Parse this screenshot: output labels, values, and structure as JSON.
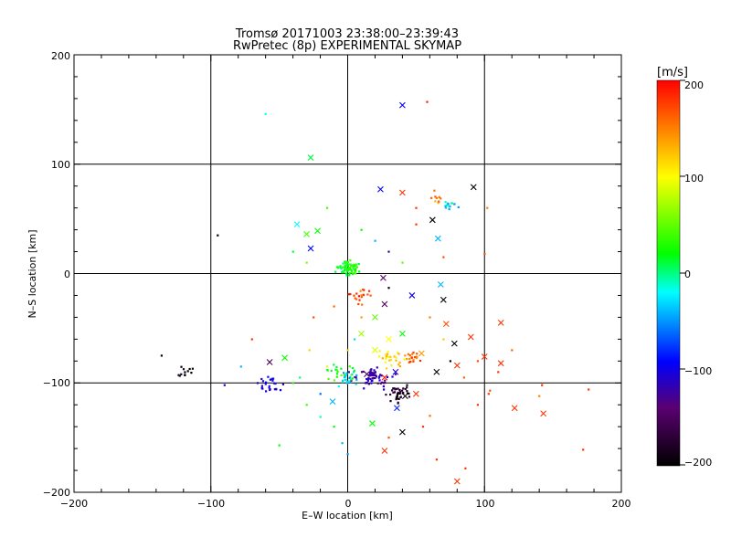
{
  "chart_data": {
    "type": "scatter",
    "title": "Tromsø 20171003 23:38:00–23:39:43",
    "subtitle": "RwPretec (8p) EXPERIMENTAL SKYMAP",
    "xlabel": "E–W location [km]",
    "ylabel": "N–S location [km]",
    "xlim": [
      -200,
      200
    ],
    "ylim": [
      -200,
      200
    ],
    "xticks": [
      "−200",
      "−100",
      "0",
      "100",
      "200"
    ],
    "yticks": [
      "200",
      "100",
      "0",
      "−100",
      "−200"
    ],
    "grid": true,
    "colorbar": {
      "unit": "[m/s]",
      "min": -200,
      "max": 200,
      "ticks": [
        "200",
        "100",
        "0",
        "−100",
        "−200"
      ],
      "colors": [
        "#000000",
        "#5a0070",
        "#0000ff",
        "#00ffff",
        "#00ff00",
        "#ffff00",
        "#ff0000"
      ]
    },
    "markers": {
      "cross": [
        [
          40,
          154,
          -90
        ],
        [
          24,
          77,
          -90
        ],
        [
          -27,
          106,
          10
        ],
        [
          -37,
          45,
          -20
        ],
        [
          -30,
          36,
          40
        ],
        [
          -22,
          39,
          20
        ],
        [
          -27,
          23,
          -90
        ],
        [
          92,
          79,
          -200
        ],
        [
          62,
          49,
          -200
        ],
        [
          66,
          32,
          -40
        ],
        [
          40,
          74,
          180
        ],
        [
          26,
          -4,
          -140
        ],
        [
          47,
          -20,
          -100
        ],
        [
          70,
          -24,
          -200
        ],
        [
          27,
          -28,
          -150
        ],
        [
          68,
          -10,
          -40
        ],
        [
          40,
          -55,
          20
        ],
        [
          72,
          -46,
          170
        ],
        [
          90,
          -58,
          180
        ],
        [
          78,
          -64,
          -200
        ],
        [
          112,
          -45,
          180
        ],
        [
          112,
          -82,
          180
        ],
        [
          100,
          -76,
          180
        ],
        [
          80,
          -84,
          180
        ],
        [
          54,
          -73,
          140
        ],
        [
          65,
          -90,
          -200
        ],
        [
          40,
          -145,
          -200
        ],
        [
          27,
          -162,
          180
        ],
        [
          80,
          -190,
          180
        ],
        [
          122,
          -123,
          180
        ],
        [
          143,
          -128,
          180
        ],
        [
          -57,
          -81,
          -150
        ],
        [
          -46,
          -77,
          20
        ],
        [
          -11,
          -117,
          -40
        ],
        [
          18,
          -137,
          20
        ],
        [
          36,
          -123,
          -80
        ],
        [
          42,
          -112,
          -200
        ],
        [
          50,
          -110,
          180
        ],
        [
          27,
          -95,
          190
        ],
        [
          14,
          -92,
          -150
        ],
        [
          35,
          -90,
          -110
        ],
        [
          20,
          -70,
          90
        ],
        [
          10,
          -55,
          70
        ],
        [
          20,
          -40,
          50
        ],
        [
          30,
          -60,
          100
        ]
      ],
      "clusters": [
        [
          0,
          5,
          8,
          80,
          20
        ],
        [
          20,
          -95,
          12,
          60,
          -120
        ],
        [
          38,
          -110,
          10,
          40,
          -180
        ],
        [
          -118,
          -90,
          6,
          12,
          -200
        ],
        [
          -55,
          -103,
          10,
          25,
          -100
        ],
        [
          48,
          -78,
          6,
          20,
          160
        ],
        [
          32,
          -78,
          10,
          25,
          110
        ],
        [
          -2,
          -97,
          8,
          25,
          -30
        ],
        [
          74,
          62,
          6,
          15,
          -30
        ],
        [
          62,
          68,
          8,
          10,
          150
        ],
        [
          10,
          -20,
          10,
          20,
          170
        ],
        [
          -5,
          -90,
          12,
          20,
          30
        ]
      ],
      "scatter": [
        [
          -60,
          146,
          -20
        ],
        [
          -95,
          35,
          -200
        ],
        [
          -136,
          -75,
          -200
        ],
        [
          58,
          157,
          190
        ],
        [
          100,
          18,
          170
        ],
        [
          102,
          60,
          150
        ],
        [
          -20,
          -131,
          -10
        ],
        [
          -50,
          -157,
          20
        ],
        [
          30,
          -13,
          -200
        ],
        [
          50,
          45,
          180
        ],
        [
          -4,
          -155,
          -40
        ],
        [
          172,
          -161,
          180
        ],
        [
          176,
          -106,
          180
        ],
        [
          142,
          -102,
          180
        ],
        [
          103,
          -110,
          180
        ],
        [
          86,
          -178,
          180
        ],
        [
          65,
          -170,
          180
        ],
        [
          -70,
          -60,
          180
        ],
        [
          -28,
          -70,
          120
        ],
        [
          -35,
          -95,
          0
        ],
        [
          -90,
          -102,
          -100
        ],
        [
          -78,
          -85,
          -40
        ],
        [
          104,
          -107,
          170
        ],
        [
          95,
          -120,
          180
        ],
        [
          140,
          -112,
          150
        ],
        [
          60,
          -130,
          160
        ],
        [
          55,
          -140,
          180
        ],
        [
          30,
          -150,
          170
        ],
        [
          0,
          -165,
          -50
        ],
        [
          -10,
          -140,
          20
        ],
        [
          -30,
          -120,
          40
        ],
        [
          -20,
          -110,
          -60
        ],
        [
          -40,
          -100,
          30
        ],
        [
          -15,
          -85,
          90
        ],
        [
          0,
          -70,
          120
        ],
        [
          10,
          -40,
          140
        ],
        [
          -10,
          -30,
          160
        ],
        [
          5,
          -60,
          -30
        ],
        [
          60,
          -40,
          150
        ],
        [
          70,
          -60,
          120
        ],
        [
          75,
          -80,
          -200
        ],
        [
          85,
          -95,
          160
        ],
        [
          95,
          -80,
          170
        ],
        [
          110,
          -90,
          180
        ],
        [
          120,
          -70,
          160
        ],
        [
          -25,
          -40,
          170
        ],
        [
          -15,
          60,
          40
        ],
        [
          10,
          40,
          20
        ],
        [
          20,
          30,
          -40
        ],
        [
          30,
          20,
          -120
        ],
        [
          40,
          10,
          50
        ],
        [
          -40,
          20,
          10
        ],
        [
          -30,
          10,
          60
        ],
        [
          70,
          15,
          170
        ],
        [
          50,
          60,
          180
        ]
      ]
    }
  }
}
